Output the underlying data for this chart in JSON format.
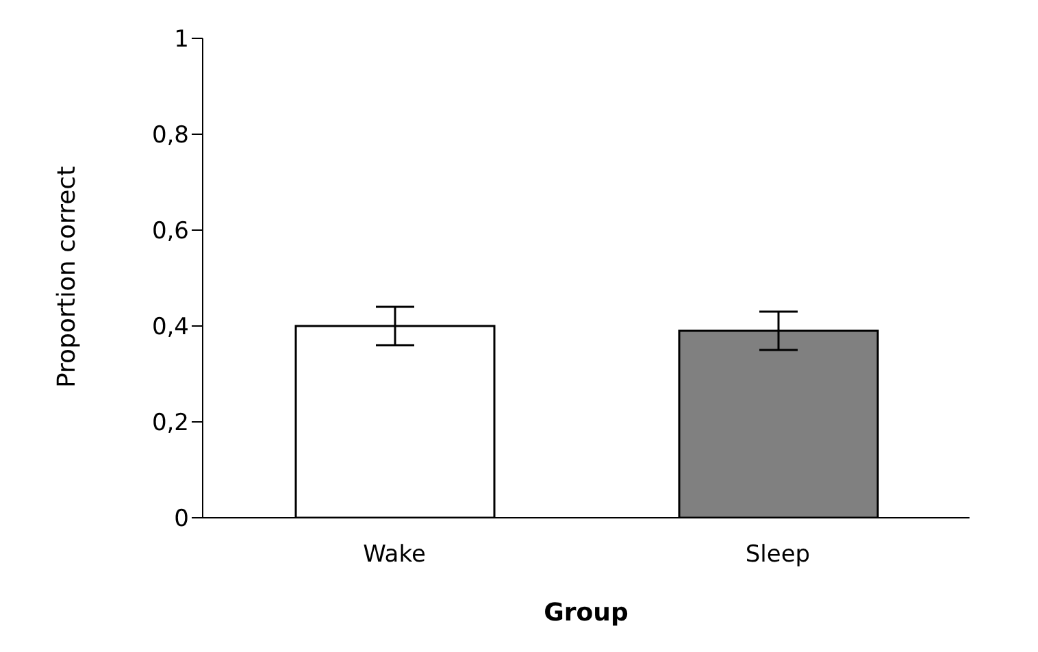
{
  "chart_data": {
    "type": "bar",
    "xlabel": "Group",
    "ylabel": "Proportion correct",
    "categories": [
      "Wake",
      "Sleep"
    ],
    "values": [
      0.4,
      0.39
    ],
    "errors": [
      0.04,
      0.04
    ],
    "colors": [
      "#ffffff",
      "#808080"
    ],
    "ylim": [
      0,
      1
    ],
    "yticks": [
      0,
      {
        "value": 0.2,
        "label": "0,2"
      },
      {
        "value": 0.4,
        "label": "0,4"
      },
      {
        "value": 0.6,
        "label": "0,6"
      },
      {
        "value": 0.8,
        "label": "0,8"
      },
      1
    ],
    "grid": false,
    "legend": false
  }
}
